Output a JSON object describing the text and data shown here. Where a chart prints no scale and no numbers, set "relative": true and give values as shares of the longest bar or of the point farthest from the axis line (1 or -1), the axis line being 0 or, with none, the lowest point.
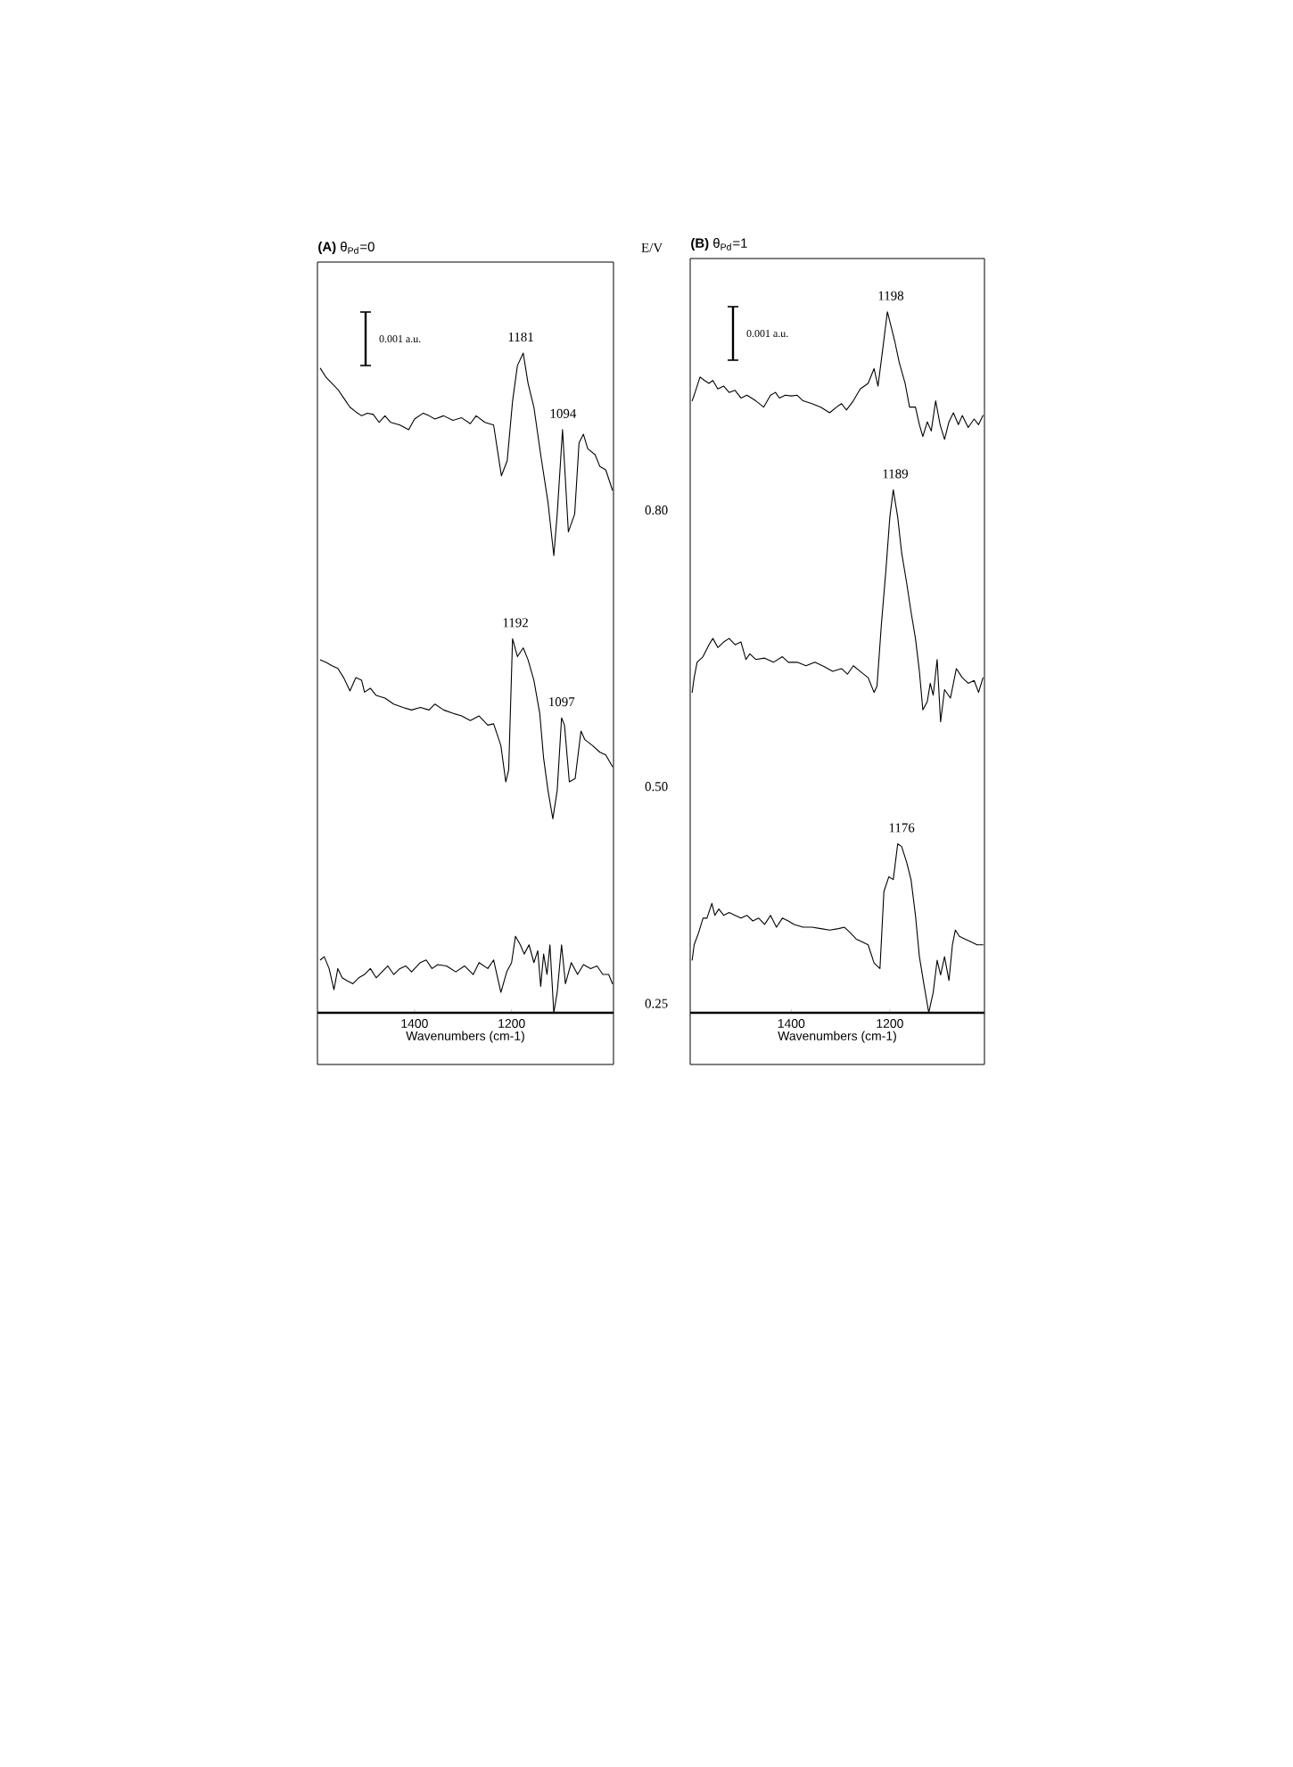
{
  "chart_data": [
    {
      "type": "line",
      "title": "**(A)** θ$_{Pd}$=0",
      "xlabel": "Wavenumbers (cm-1)",
      "legend_title": "E/V",
      "relative": true,
      "xlim": [
        1600,
        990
      ],
      "xticks": [
        1400,
        1200
      ],
      "annotations": [
        "0.001 a.u.",
        {
          "text": "1181",
          "x": 1181,
          "y": 1.0
        },
        {
          "text": "1094",
          "x": 1094,
          "y": 0.884
        },
        {
          "text": "1192",
          "x": 1192,
          "y": 0.567
        },
        {
          "text": "1097",
          "x": 1097,
          "y": 0.447
        }
      ],
      "series": [
        {
          "name": "0.80",
          "color": "#000000",
          "x": [
            1594,
            1582,
            1570,
            1558,
            1546,
            1533,
            1521,
            1509,
            1497,
            1485,
            1473,
            1461,
            1449,
            1430,
            1412,
            1400,
            1382,
            1370,
            1358,
            1340,
            1321,
            1303,
            1285,
            1273,
            1255,
            1237,
            1221,
            1209,
            1198,
            1188,
            1176,
            1166,
            1154,
            1140,
            1125,
            1113,
            1106,
            1095,
            1083,
            1070,
            1061,
            1052,
            1043,
            1028,
            1018,
            1006,
            992
          ],
          "values": [
            0.977,
            0.963,
            0.954,
            0.945,
            0.932,
            0.918,
            0.911,
            0.905,
            0.909,
            0.907,
            0.895,
            0.905,
            0.895,
            0.891,
            0.884,
            0.9,
            0.909,
            0.905,
            0.9,
            0.905,
            0.898,
            0.902,
            0.893,
            0.905,
            0.895,
            0.891,
            0.814,
            0.837,
            0.927,
            0.981,
            1.0,
            0.954,
            0.918,
            0.846,
            0.774,
            0.693,
            0.756,
            0.884,
            0.729,
            0.756,
            0.864,
            0.877,
            0.855,
            0.846,
            0.828,
            0.823,
            0.792
          ]
        },
        {
          "name": "0.50",
          "color": "#000000",
          "x": [
            1594,
            1582,
            1570,
            1558,
            1546,
            1533,
            1521,
            1509,
            1503,
            1491,
            1479,
            1461,
            1443,
            1424,
            1406,
            1388,
            1370,
            1358,
            1340,
            1321,
            1303,
            1285,
            1267,
            1249,
            1237,
            1222,
            1212,
            1206,
            1198,
            1188,
            1176,
            1166,
            1154,
            1142,
            1134,
            1125,
            1115,
            1106,
            1097,
            1091,
            1081,
            1069,
            1057,
            1049,
            1033,
            1018,
            1006,
            992
          ],
          "values": [
            0.535,
            0.531,
            0.526,
            0.522,
            0.508,
            0.488,
            0.508,
            0.504,
            0.486,
            0.492,
            0.481,
            0.477,
            0.468,
            0.463,
            0.459,
            0.463,
            0.459,
            0.468,
            0.459,
            0.454,
            0.45,
            0.443,
            0.45,
            0.436,
            0.438,
            0.405,
            0.35,
            0.368,
            0.567,
            0.54,
            0.553,
            0.535,
            0.504,
            0.454,
            0.386,
            0.337,
            0.294,
            0.337,
            0.447,
            0.436,
            0.35,
            0.355,
            0.427,
            0.414,
            0.405,
            0.395,
            0.391,
            0.373
          ]
        },
        {
          "name": "0.25",
          "color": "#000000",
          "x": [
            1594,
            1586,
            1576,
            1566,
            1558,
            1549,
            1540,
            1527,
            1515,
            1503,
            1491,
            1479,
            1467,
            1455,
            1443,
            1430,
            1418,
            1406,
            1388,
            1376,
            1364,
            1352,
            1334,
            1315,
            1297,
            1279,
            1267,
            1249,
            1237,
            1222,
            1210,
            1200,
            1192,
            1182,
            1174,
            1164,
            1154,
            1146,
            1140,
            1134,
            1127,
            1121,
            1113,
            1106,
            1097,
            1089,
            1077,
            1064,
            1052,
            1037,
            1024,
            1012,
            1000,
            992
          ],
          "values": [
            0.08,
            0.085,
            0.067,
            0.035,
            0.067,
            0.053,
            0.049,
            0.044,
            0.053,
            0.058,
            0.067,
            0.053,
            0.062,
            0.071,
            0.058,
            0.067,
            0.071,
            0.062,
            0.076,
            0.08,
            0.067,
            0.073,
            0.071,
            0.062,
            0.071,
            0.058,
            0.076,
            0.067,
            0.08,
            0.031,
            0.062,
            0.076,
            0.116,
            0.103,
            0.089,
            0.103,
            0.076,
            0.094,
            0.04,
            0.089,
            0.058,
            0.103,
            0.0,
            0.031,
            0.103,
            0.044,
            0.076,
            0.058,
            0.073,
            0.067,
            0.071,
            0.058,
            0.058,
            0.044
          ]
        }
      ]
    },
    {
      "type": "line",
      "title": "**(B)** θ$_{Pd}$=1",
      "xlabel": "Wavenumbers (cm-1)",
      "relative": true,
      "xlim": [
        1605,
        1008
      ],
      "xticks": [
        1400,
        1200
      ],
      "annotations": [
        "0.001 a.u.",
        {
          "text": "1198",
          "x": 1198,
          "y": 1.0
        },
        {
          "text": "1189",
          "x": 1189,
          "y": 0.746
        },
        {
          "text": "1176",
          "x": 1176,
          "y": 0.241
        }
      ],
      "series": [
        {
          "color": "#000000",
          "x": [
            1601,
            1597,
            1585,
            1576,
            1567,
            1559,
            1549,
            1537,
            1526,
            1514,
            1502,
            1490,
            1472,
            1456,
            1442,
            1432,
            1424,
            1412,
            1400,
            1388,
            1376,
            1358,
            1340,
            1322,
            1308,
            1298,
            1288,
            1274,
            1260,
            1244,
            1232,
            1224,
            1214,
            1205,
            1196,
            1190,
            1181,
            1169,
            1160,
            1148,
            1140,
            1133,
            1124,
            1116,
            1107,
            1098,
            1089,
            1080,
            1071,
            1061,
            1053,
            1041,
            1029,
            1020,
            1011
          ],
          "values": [
            0.873,
            0.881,
            0.907,
            0.902,
            0.898,
            0.902,
            0.89,
            0.894,
            0.885,
            0.888,
            0.877,
            0.881,
            0.873,
            0.864,
            0.881,
            0.885,
            0.877,
            0.881,
            0.88,
            0.881,
            0.873,
            0.869,
            0.864,
            0.856,
            0.864,
            0.869,
            0.86,
            0.873,
            0.89,
            0.898,
            0.919,
            0.894,
            0.949,
            1.0,
            0.975,
            0.958,
            0.928,
            0.898,
            0.864,
            0.864,
            0.839,
            0.822,
            0.843,
            0.83,
            0.873,
            0.839,
            0.818,
            0.843,
            0.856,
            0.839,
            0.852,
            0.835,
            0.847,
            0.839,
            0.852
          ]
        },
        {
          "color": "#000000",
          "x": [
            1601,
            1597,
            1591,
            1579,
            1567,
            1559,
            1549,
            1537,
            1526,
            1514,
            1502,
            1492,
            1484,
            1472,
            1454,
            1436,
            1418,
            1406,
            1388,
            1370,
            1352,
            1334,
            1316,
            1298,
            1286,
            1274,
            1260,
            1244,
            1232,
            1226,
            1217,
            1208,
            1200,
            1193,
            1184,
            1176,
            1166,
            1157,
            1148,
            1140,
            1133,
            1124,
            1118,
            1112,
            1104,
            1097,
            1089,
            1077,
            1065,
            1053,
            1041,
            1029,
            1020,
            1011
          ],
          "values": [
            0.457,
            0.478,
            0.5,
            0.508,
            0.525,
            0.534,
            0.521,
            0.529,
            0.534,
            0.525,
            0.529,
            0.504,
            0.512,
            0.504,
            0.506,
            0.5,
            0.508,
            0.5,
            0.5,
            0.495,
            0.5,
            0.494,
            0.487,
            0.491,
            0.483,
            0.495,
            0.487,
            0.478,
            0.457,
            0.466,
            0.555,
            0.631,
            0.707,
            0.746,
            0.707,
            0.656,
            0.614,
            0.572,
            0.534,
            0.487,
            0.432,
            0.444,
            0.47,
            0.453,
            0.504,
            0.415,
            0.461,
            0.449,
            0.491,
            0.478,
            0.47,
            0.474,
            0.457,
            0.478
          ]
        },
        {
          "color": "#000000",
          "x": [
            1601,
            1597,
            1588,
            1579,
            1571,
            1561,
            1555,
            1547,
            1537,
            1526,
            1514,
            1502,
            1490,
            1478,
            1466,
            1454,
            1442,
            1430,
            1418,
            1406,
            1394,
            1376,
            1358,
            1340,
            1322,
            1304,
            1292,
            1280,
            1268,
            1256,
            1244,
            1232,
            1220,
            1212,
            1202,
            1193,
            1184,
            1176,
            1166,
            1157,
            1148,
            1140,
            1130,
            1121,
            1112,
            1104,
            1097,
            1089,
            1080,
            1073,
            1067,
            1059,
            1047,
            1035,
            1023,
            1011
          ],
          "values": [
            0.075,
            0.097,
            0.114,
            0.135,
            0.135,
            0.156,
            0.139,
            0.148,
            0.139,
            0.143,
            0.139,
            0.135,
            0.139,
            0.131,
            0.135,
            0.126,
            0.139,
            0.122,
            0.135,
            0.131,
            0.126,
            0.122,
            0.122,
            0.12,
            0.118,
            0.12,
            0.122,
            0.114,
            0.105,
            0.101,
            0.097,
            0.071,
            0.063,
            0.173,
            0.194,
            0.19,
            0.241,
            0.237,
            0.215,
            0.19,
            0.139,
            0.08,
            0.037,
            0.0,
            0.029,
            0.075,
            0.054,
            0.08,
            0.046,
            0.097,
            0.118,
            0.109,
            0.105,
            0.101,
            0.097,
            0.097
          ]
        }
      ]
    }
  ]
}
